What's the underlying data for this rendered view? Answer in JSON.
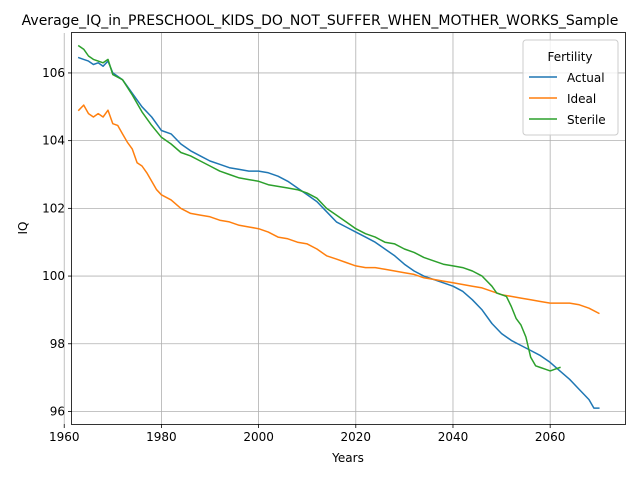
{
  "chart_data": {
    "type": "line",
    "title": "Average_IQ_in_PRESCHOOL_KIDS_DO_NOT_SUFFER_WHEN_MOTHER_WORKS_Sample",
    "xlabel": "Years",
    "ylabel": "IQ",
    "xlim": [
      1961.6,
      2075.4
    ],
    "ylim": [
      95.63,
      107.18
    ],
    "xticks": [
      1960,
      1980,
      2000,
      2020,
      2040,
      2060
    ],
    "yticks": [
      96,
      98,
      100,
      102,
      104,
      106
    ],
    "grid": true,
    "legend": {
      "title": "Fertility",
      "position": "top-right"
    },
    "series": [
      {
        "name": "Actual",
        "color": "#1f77b4",
        "x": [
          1963,
          1964,
          1965,
          1966,
          1967,
          1968,
          1969,
          1970,
          1972,
          1974,
          1976,
          1978,
          1980,
          1982,
          1984,
          1986,
          1988,
          1990,
          1992,
          1994,
          1996,
          1998,
          2000,
          2002,
          2004,
          2006,
          2008,
          2010,
          2012,
          2014,
          2016,
          2018,
          2020,
          2022,
          2024,
          2026,
          2028,
          2030,
          2032,
          2034,
          2036,
          2038,
          2040,
          2042,
          2044,
          2046,
          2048,
          2050,
          2052,
          2054,
          2056,
          2058,
          2060,
          2062,
          2064,
          2066,
          2068,
          2069,
          2070
        ],
        "values": [
          106.45,
          106.4,
          106.35,
          106.25,
          106.3,
          106.2,
          106.35,
          106.0,
          105.8,
          105.4,
          105.0,
          104.7,
          104.3,
          104.2,
          103.9,
          103.7,
          103.55,
          103.4,
          103.3,
          103.2,
          103.15,
          103.1,
          103.1,
          103.05,
          102.95,
          102.8,
          102.6,
          102.4,
          102.2,
          101.9,
          101.6,
          101.45,
          101.3,
          101.15,
          101.0,
          100.8,
          100.6,
          100.35,
          100.15,
          100.0,
          99.9,
          99.8,
          99.7,
          99.55,
          99.3,
          99.0,
          98.6,
          98.3,
          98.1,
          97.95,
          97.8,
          97.65,
          97.45,
          97.2,
          96.95,
          96.65,
          96.35,
          96.1,
          96.1
        ]
      },
      {
        "name": "Ideal",
        "color": "#ff7f0e",
        "x": [
          1963,
          1964,
          1965,
          1966,
          1967,
          1968,
          1969,
          1970,
          1971,
          1972,
          1973,
          1974,
          1975,
          1976,
          1977,
          1978,
          1979,
          1980,
          1982,
          1984,
          1986,
          1988,
          1990,
          1992,
          1994,
          1996,
          1998,
          2000,
          2002,
          2004,
          2006,
          2008,
          2010,
          2012,
          2014,
          2016,
          2018,
          2020,
          2022,
          2024,
          2026,
          2028,
          2030,
          2032,
          2034,
          2036,
          2038,
          2040,
          2042,
          2044,
          2046,
          2048,
          2050,
          2052,
          2054,
          2056,
          2058,
          2060,
          2062,
          2064,
          2066,
          2068,
          2070
        ],
        "values": [
          104.9,
          105.05,
          104.8,
          104.7,
          104.8,
          104.7,
          104.9,
          104.5,
          104.45,
          104.2,
          103.95,
          103.75,
          103.35,
          103.25,
          103.05,
          102.8,
          102.55,
          102.4,
          102.25,
          102.0,
          101.85,
          101.8,
          101.75,
          101.65,
          101.6,
          101.5,
          101.45,
          101.4,
          101.3,
          101.15,
          101.1,
          101.0,
          100.95,
          100.8,
          100.6,
          100.5,
          100.4,
          100.3,
          100.25,
          100.25,
          100.2,
          100.15,
          100.1,
          100.05,
          99.95,
          99.9,
          99.85,
          99.8,
          99.75,
          99.7,
          99.65,
          99.55,
          99.45,
          99.4,
          99.35,
          99.3,
          99.25,
          99.2,
          99.2,
          99.2,
          99.15,
          99.05,
          98.9
        ]
      },
      {
        "name": "Sterile",
        "color": "#2ca02c",
        "x": [
          1963,
          1964,
          1965,
          1966,
          1967,
          1968,
          1969,
          1970,
          1972,
          1974,
          1976,
          1978,
          1980,
          1982,
          1984,
          1986,
          1988,
          1990,
          1992,
          1994,
          1996,
          1998,
          2000,
          2002,
          2004,
          2006,
          2008,
          2010,
          2012,
          2014,
          2016,
          2018,
          2020,
          2022,
          2024,
          2026,
          2028,
          2030,
          2032,
          2034,
          2036,
          2038,
          2040,
          2042,
          2044,
          2046,
          2048,
          2049,
          2050,
          2051,
          2052,
          2053,
          2054,
          2055,
          2056,
          2057,
          2058,
          2059,
          2060,
          2061,
          2062
        ],
        "values": [
          106.8,
          106.7,
          106.5,
          106.4,
          106.35,
          106.3,
          106.4,
          105.95,
          105.8,
          105.35,
          104.85,
          104.45,
          104.1,
          103.9,
          103.65,
          103.55,
          103.4,
          103.25,
          103.1,
          103.0,
          102.9,
          102.85,
          102.8,
          102.7,
          102.65,
          102.6,
          102.55,
          102.45,
          102.3,
          102.0,
          101.8,
          101.6,
          101.4,
          101.25,
          101.15,
          101.0,
          100.95,
          100.8,
          100.7,
          100.55,
          100.45,
          100.35,
          100.3,
          100.25,
          100.15,
          100.0,
          99.7,
          99.5,
          99.45,
          99.4,
          99.1,
          98.75,
          98.55,
          98.2,
          97.6,
          97.35,
          97.3,
          97.25,
          97.2,
          97.25,
          97.3
        ]
      }
    ]
  }
}
